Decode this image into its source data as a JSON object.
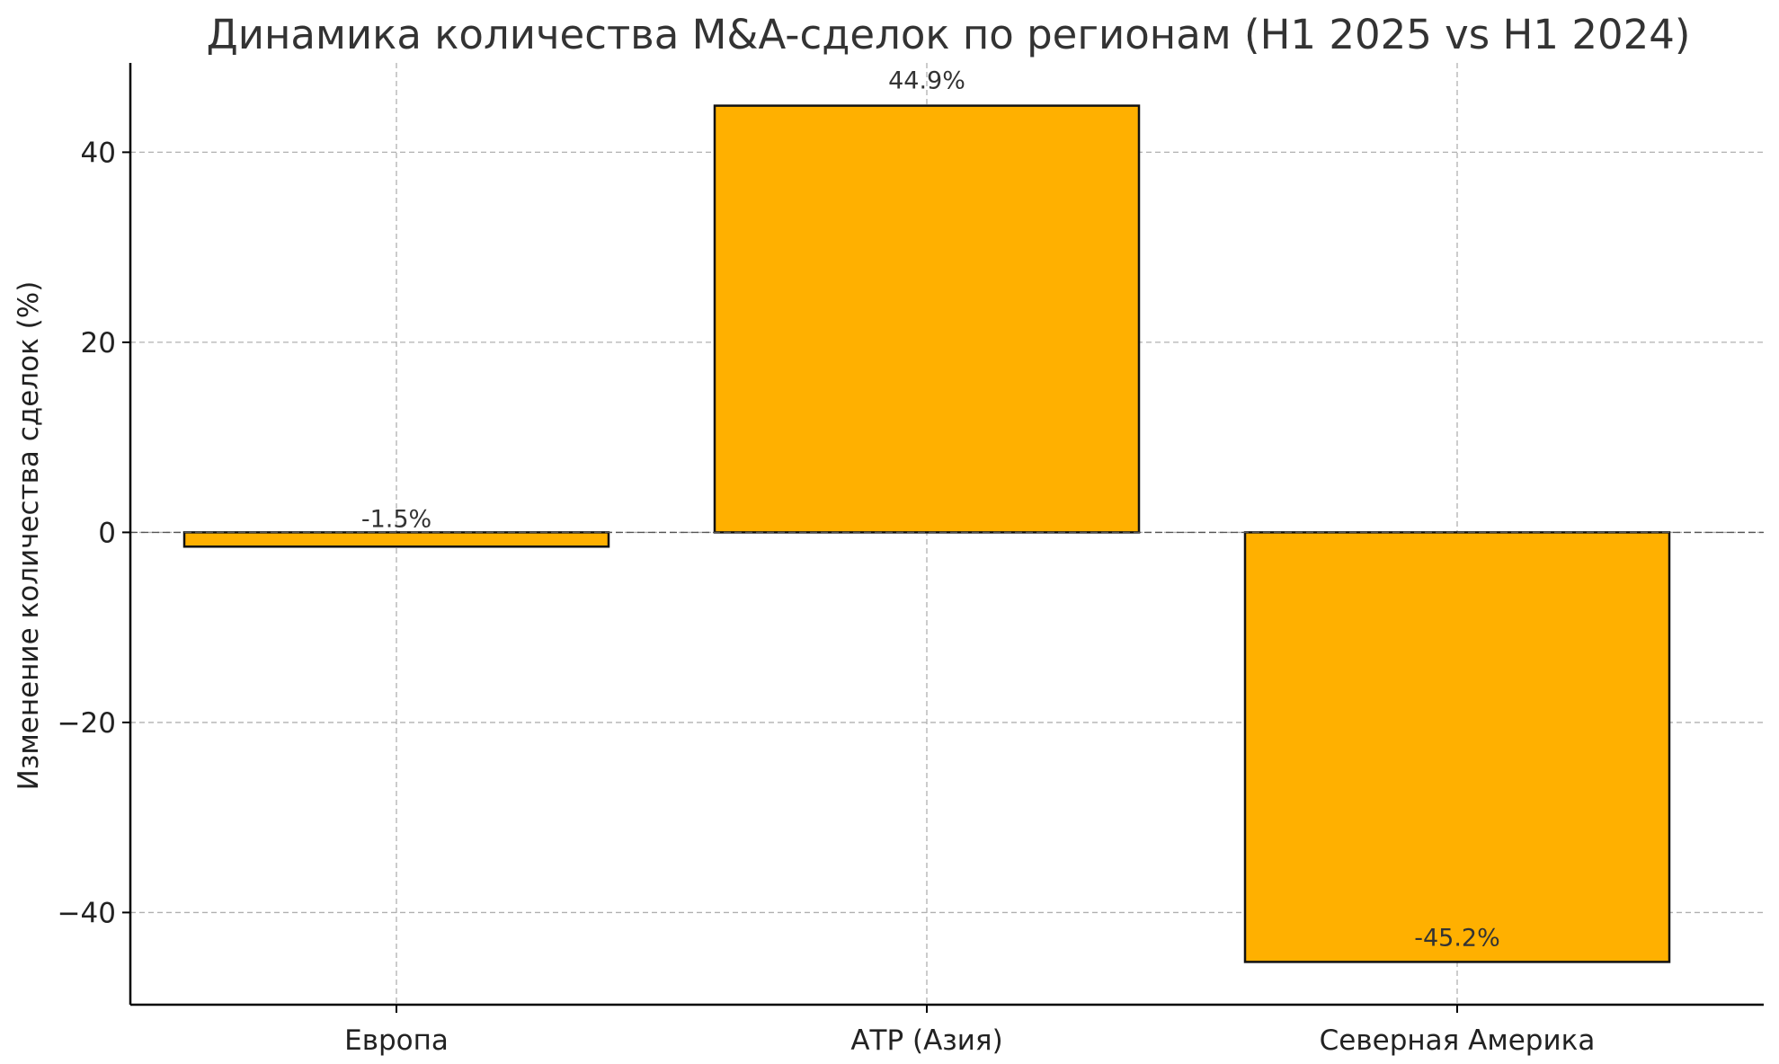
{
  "chart_data": {
    "type": "bar",
    "title": "Динамика количества M&A-сделок по регионам (H1 2025 vs H1 2024)",
    "xlabel": "",
    "ylabel": "Изменение количества сделок (%)",
    "categories": [
      "Европа",
      "АТР (Азия)",
      "Северная Америка"
    ],
    "values": [
      -1.5,
      44.9,
      -45.2
    ],
    "data_labels": [
      "-1.5%",
      "44.9%",
      "-45.2%"
    ],
    "ylim": [
      -49.7,
      49.4
    ],
    "yticks": [
      -40,
      -20,
      0,
      20,
      40
    ],
    "ytick_labels": [
      "−40",
      "−20",
      "0",
      "20",
      "40"
    ],
    "grid": true,
    "zero_line": true,
    "colors": {
      "bar": "#FFB000",
      "bar_edge": "#111111",
      "grid": "#b0b0b0"
    }
  }
}
